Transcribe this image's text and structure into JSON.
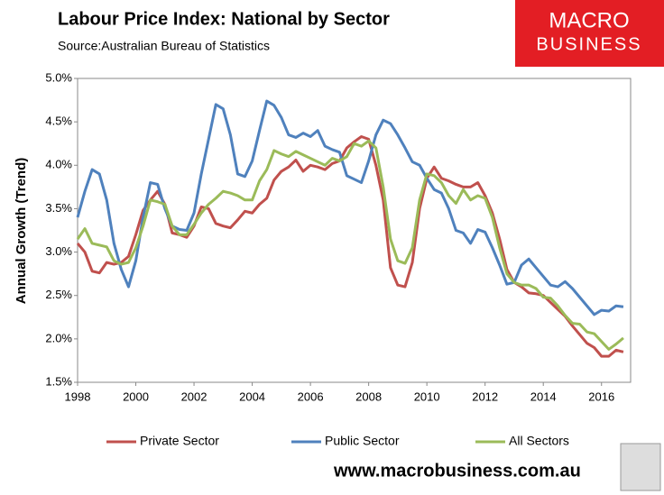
{
  "chart_data": {
    "type": "line",
    "title": "Labour Price Index: National by Sector",
    "subtitle": "Source:Australian Bureau of Statistics",
    "ylabel": "Annual Growth (Trend)",
    "logo": {
      "line1": "MACRO",
      "line2": "BUSINESS"
    },
    "website": "www.macrobusiness.com.au",
    "x": [
      1998,
      1998.25,
      1998.5,
      1998.75,
      1999,
      1999.25,
      1999.5,
      1999.75,
      2000,
      2000.25,
      2000.5,
      2000.75,
      2001,
      2001.25,
      2001.5,
      2001.75,
      2002,
      2002.25,
      2002.5,
      2002.75,
      2003,
      2003.25,
      2003.5,
      2003.75,
      2004,
      2004.25,
      2004.5,
      2004.75,
      2005,
      2005.25,
      2005.5,
      2005.75,
      2006,
      2006.25,
      2006.5,
      2006.75,
      2007,
      2007.25,
      2007.5,
      2007.75,
      2008,
      2008.25,
      2008.5,
      2008.75,
      2009,
      2009.25,
      2009.5,
      2009.75,
      2010,
      2010.25,
      2010.5,
      2010.75,
      2011,
      2011.25,
      2011.5,
      2011.75,
      2012,
      2012.25,
      2012.5,
      2012.75,
      2013,
      2013.25,
      2013.5,
      2013.75,
      2014,
      2014.25,
      2014.5,
      2014.75,
      2015,
      2015.25,
      2015.5,
      2015.75,
      2016,
      2016.25,
      2016.5,
      2016.75
    ],
    "series": [
      {
        "name": "Private Sector",
        "color": "#c0504d",
        "values": [
          3.1,
          3.0,
          2.78,
          2.76,
          2.88,
          2.86,
          2.88,
          2.95,
          3.2,
          3.48,
          3.6,
          3.7,
          3.55,
          3.22,
          3.2,
          3.17,
          3.3,
          3.52,
          3.5,
          3.33,
          3.3,
          3.28,
          3.37,
          3.47,
          3.45,
          3.55,
          3.62,
          3.83,
          3.93,
          3.98,
          4.06,
          3.93,
          4.0,
          3.98,
          3.95,
          4.02,
          4.05,
          4.2,
          4.27,
          4.33,
          4.3,
          4.0,
          3.6,
          2.82,
          2.62,
          2.6,
          2.88,
          3.5,
          3.85,
          3.98,
          3.85,
          3.82,
          3.78,
          3.75,
          3.75,
          3.8,
          3.65,
          3.45,
          3.15,
          2.8,
          2.65,
          2.6,
          2.53,
          2.52,
          2.5,
          2.42,
          2.34,
          2.26,
          2.15,
          2.05,
          1.95,
          1.9,
          1.8,
          1.8,
          1.87,
          1.85
        ]
      },
      {
        "name": "Public Sector",
        "color": "#4f81bd",
        "values": [
          3.4,
          3.7,
          3.95,
          3.9,
          3.6,
          3.1,
          2.8,
          2.6,
          2.9,
          3.4,
          3.8,
          3.78,
          3.5,
          3.3,
          3.26,
          3.25,
          3.45,
          3.9,
          4.3,
          4.7,
          4.65,
          4.35,
          3.9,
          3.87,
          4.05,
          4.4,
          4.74,
          4.69,
          4.55,
          4.35,
          4.32,
          4.37,
          4.33,
          4.4,
          4.22,
          4.18,
          4.15,
          3.88,
          3.84,
          3.8,
          4.05,
          4.35,
          4.52,
          4.48,
          4.35,
          4.2,
          4.04,
          4.0,
          3.85,
          3.72,
          3.68,
          3.5,
          3.25,
          3.22,
          3.1,
          3.26,
          3.23,
          3.05,
          2.85,
          2.63,
          2.65,
          2.85,
          2.92,
          2.82,
          2.72,
          2.62,
          2.6,
          2.66,
          2.58,
          2.48,
          2.38,
          2.28,
          2.33,
          2.32,
          2.38,
          2.37
        ]
      },
      {
        "name": "All Sectors",
        "color": "#9bbb59",
        "values": [
          3.15,
          3.27,
          3.1,
          3.08,
          3.06,
          2.9,
          2.86,
          2.88,
          3.05,
          3.3,
          3.6,
          3.58,
          3.55,
          3.3,
          3.2,
          3.2,
          3.32,
          3.45,
          3.55,
          3.62,
          3.7,
          3.68,
          3.65,
          3.6,
          3.6,
          3.82,
          3.95,
          4.17,
          4.13,
          4.1,
          4.16,
          4.12,
          4.08,
          4.04,
          4.0,
          4.08,
          4.05,
          4.1,
          4.25,
          4.22,
          4.28,
          4.2,
          3.75,
          3.15,
          2.9,
          2.87,
          3.05,
          3.6,
          3.9,
          3.88,
          3.8,
          3.65,
          3.56,
          3.72,
          3.6,
          3.65,
          3.62,
          3.4,
          3.05,
          2.75,
          2.65,
          2.62,
          2.62,
          2.58,
          2.48,
          2.47,
          2.38,
          2.27,
          2.18,
          2.17,
          2.08,
          2.06,
          1.97,
          1.88,
          1.94,
          2.01
        ]
      }
    ],
    "xlim": [
      1998,
      2017
    ],
    "xticks": [
      1998,
      2000,
      2002,
      2004,
      2006,
      2008,
      2010,
      2012,
      2014,
      2016
    ],
    "ylim": [
      1.5,
      5.0
    ],
    "yticks": [
      {
        "value": 1.5,
        "label": "1.5%"
      },
      {
        "value": 2.0,
        "label": "2.0%"
      },
      {
        "value": 2.5,
        "label": "2.5%"
      },
      {
        "value": 3.0,
        "label": "3.0%"
      },
      {
        "value": 3.5,
        "label": "3.5%"
      },
      {
        "value": 4.0,
        "label": "4.0%"
      },
      {
        "value": 4.5,
        "label": "4.5%"
      },
      {
        "value": 5.0,
        "label": "5.0%"
      }
    ],
    "grid": false
  }
}
